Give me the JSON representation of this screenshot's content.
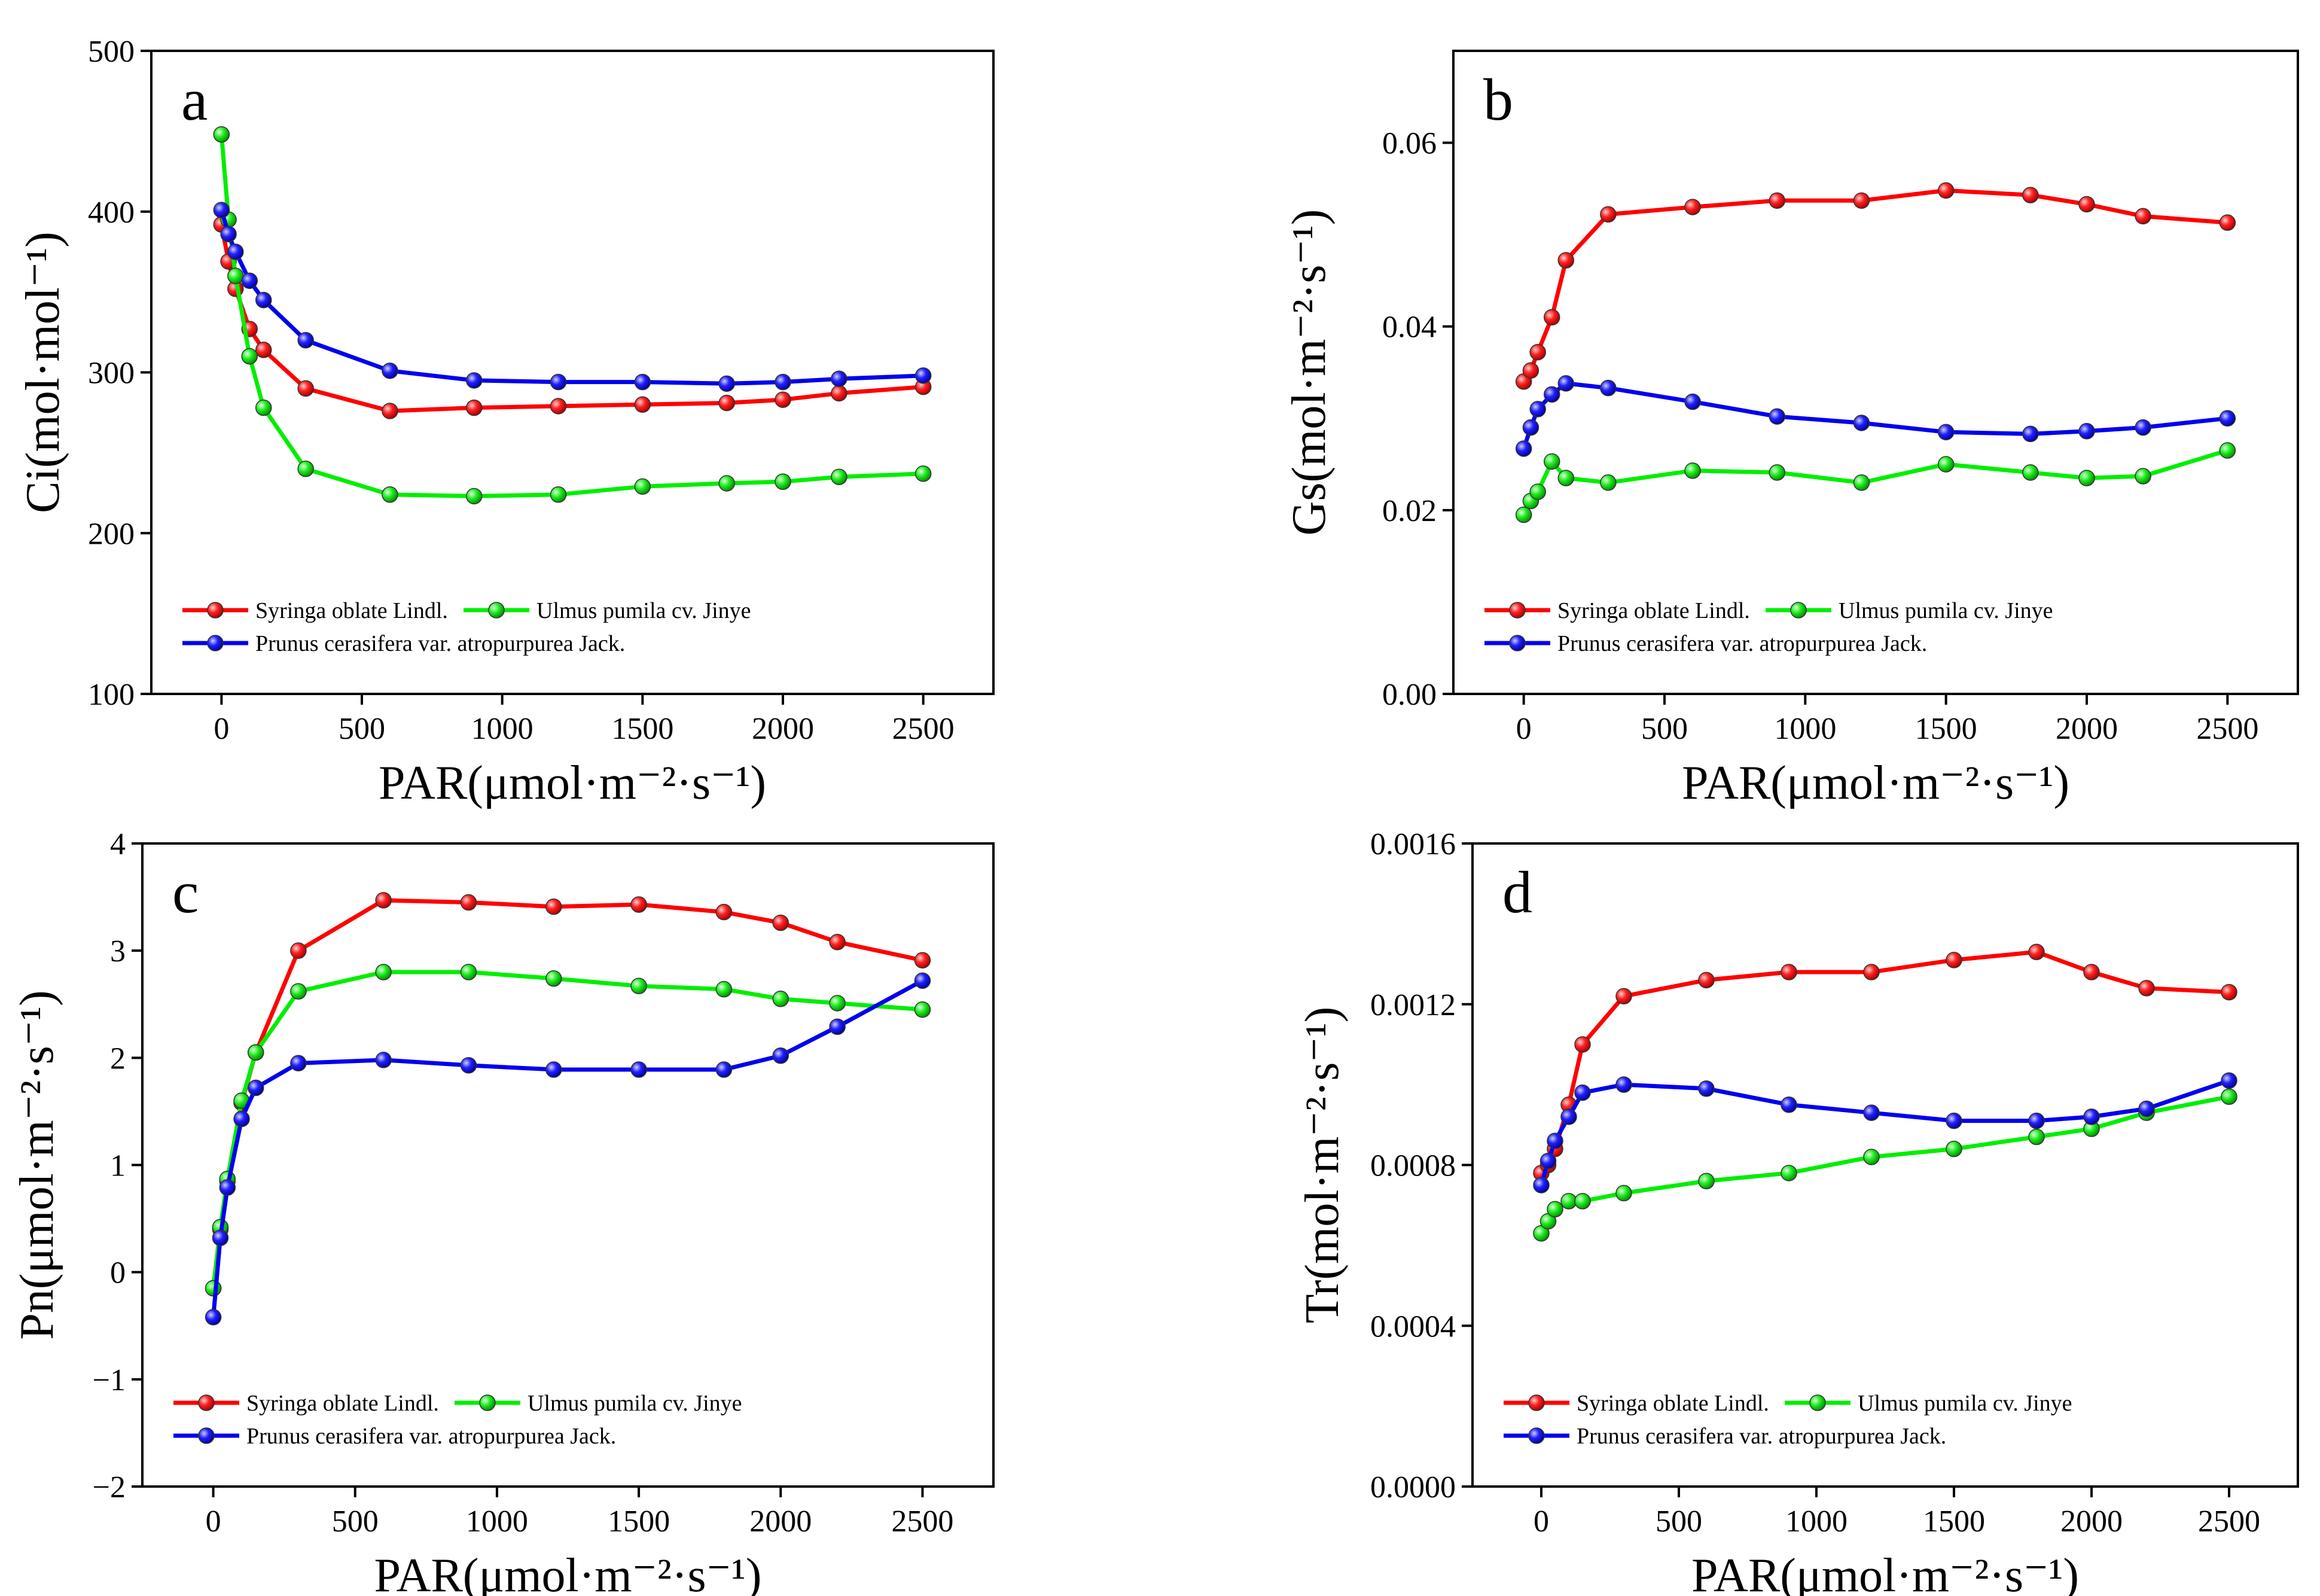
{
  "colors": {
    "red": "#ff0000",
    "green": "#00ee00",
    "blue": "#0000ee",
    "axis": "#000000"
  },
  "x_values": [
    0,
    25,
    50,
    100,
    150,
    300,
    600,
    900,
    1200,
    1500,
    1800,
    2000,
    2200,
    2500
  ],
  "legend": {
    "series1": "Syringa oblate Lindl.",
    "series2": "Ulmus pumila cv. Jinye",
    "series3": "Prunus cerasifera var. atropurpurea Jack."
  },
  "chart_data": [
    {
      "id": "a",
      "type": "line",
      "panel_label": "a",
      "xlabel": "PAR(μmol·m⁻²·s⁻¹)",
      "ylabel": "Ci(mol·mol⁻¹)",
      "xlim": [
        -250,
        2750
      ],
      "ylim": [
        100,
        500
      ],
      "xticks": [
        0,
        500,
        1000,
        1500,
        2000,
        2500
      ],
      "yticks": [
        100,
        200,
        300,
        400,
        500
      ],
      "ytick_labels": [
        "100",
        "200",
        "300",
        "400",
        "500"
      ],
      "series": [
        {
          "name": "Syringa oblate Lindl.",
          "color": "#ff0000",
          "values": [
            392,
            369,
            352,
            327,
            314,
            290,
            276,
            278,
            279,
            280,
            281,
            283,
            287,
            291
          ]
        },
        {
          "name": "Ulmus pumila cv. Jinye",
          "color": "#00ee00",
          "values": [
            448,
            395,
            360,
            310,
            278,
            240,
            224,
            223,
            224,
            229,
            231,
            232,
            235,
            237
          ]
        },
        {
          "name": "Prunus cerasifera var. atropurpurea Jack.",
          "color": "#0000ee",
          "values": [
            401,
            386,
            375,
            357,
            345,
            320,
            301,
            295,
            294,
            294,
            293,
            294,
            296,
            298
          ]
        }
      ]
    },
    {
      "id": "b",
      "type": "line",
      "panel_label": "b",
      "xlabel": "PAR(μmol·m⁻²·s⁻¹)",
      "ylabel": "Gs(mol·m⁻²·s⁻¹)",
      "xlim": [
        -250,
        2750
      ],
      "ylim": [
        0,
        0.07
      ],
      "xticks": [
        0,
        500,
        1000,
        1500,
        2000,
        2500
      ],
      "yticks": [
        0,
        0.02,
        0.04,
        0.06
      ],
      "ytick_labels": [
        "0.00",
        "0.02",
        "0.04",
        "0.06"
      ],
      "series": [
        {
          "name": "Syringa oblate Lindl.",
          "color": "#ff0000",
          "values": [
            0.034,
            0.0352,
            0.0372,
            0.041,
            0.0472,
            0.0522,
            0.053,
            0.0537,
            0.0537,
            0.0548,
            0.0543,
            0.0533,
            0.052,
            0.0513
          ]
        },
        {
          "name": "Ulmus pumila cv. Jinye",
          "color": "#00ee00",
          "values": [
            0.0195,
            0.021,
            0.022,
            0.0253,
            0.0235,
            0.023,
            0.0243,
            0.0241,
            0.023,
            0.025,
            0.0241,
            0.0235,
            0.0237,
            0.0265
          ]
        },
        {
          "name": "Prunus cerasifera var. atropurpurea Jack.",
          "color": "#0000ee",
          "values": [
            0.0267,
            0.029,
            0.031,
            0.0326,
            0.0338,
            0.0333,
            0.0318,
            0.0302,
            0.0295,
            0.0285,
            0.0283,
            0.0286,
            0.029,
            0.03
          ]
        }
      ]
    },
    {
      "id": "c",
      "type": "line",
      "panel_label": "c",
      "xlabel": "PAR(μmol·m⁻²·s⁻¹)",
      "ylabel": "Pn(μmol·m⁻²·s⁻¹)",
      "xlim": [
        -250,
        2750
      ],
      "ylim": [
        -2,
        4
      ],
      "xticks": [
        0,
        500,
        1000,
        1500,
        2000,
        2500
      ],
      "yticks": [
        -2,
        -1,
        0,
        1,
        2,
        3,
        4
      ],
      "ytick_labels": [
        "−2",
        "−1",
        "0",
        "1",
        "2",
        "3",
        "4"
      ],
      "series": [
        {
          "name": "Syringa oblate Lindl.",
          "color": "#ff0000",
          "values": [
            -0.15,
            0.4,
            0.85,
            1.58,
            2.05,
            3.0,
            3.47,
            3.45,
            3.41,
            3.43,
            3.36,
            3.26,
            3.08,
            2.91
          ]
        },
        {
          "name": "Ulmus pumila cv. Jinye",
          "color": "#00ee00",
          "values": [
            -0.15,
            0.42,
            0.87,
            1.6,
            2.05,
            2.62,
            2.8,
            2.8,
            2.74,
            2.67,
            2.64,
            2.55,
            2.51,
            2.45
          ]
        },
        {
          "name": "Prunus cerasifera var. atropurpurea Jack.",
          "color": "#0000ee",
          "values": [
            -0.42,
            0.32,
            0.79,
            1.43,
            1.72,
            1.95,
            1.98,
            1.93,
            1.89,
            1.89,
            1.89,
            2.02,
            2.29,
            2.72
          ]
        }
      ]
    },
    {
      "id": "d",
      "type": "line",
      "panel_label": "d",
      "xlabel": "PAR(μmol·m⁻²·s⁻¹)",
      "ylabel": "Tr(mol·m⁻²·s⁻¹)",
      "xlim": [
        -250,
        2750
      ],
      "ylim": [
        0,
        0.0016
      ],
      "xticks": [
        0,
        500,
        1000,
        1500,
        2000,
        2500
      ],
      "yticks": [
        0,
        0.0004,
        0.0008,
        0.0012,
        0.0016
      ],
      "ytick_labels": [
        "0.0000",
        "0.0004",
        "0.0008",
        "0.0012",
        "0.0016"
      ],
      "series": [
        {
          "name": "Syringa oblate Lindl.",
          "color": "#ff0000",
          "values": [
            0.00078,
            0.0008,
            0.00084,
            0.00095,
            0.0011,
            0.00122,
            0.00126,
            0.00128,
            0.00128,
            0.00131,
            0.00133,
            0.00128,
            0.00124,
            0.00123
          ]
        },
        {
          "name": "Ulmus pumila cv. Jinye",
          "color": "#00ee00",
          "values": [
            0.00063,
            0.00066,
            0.00069,
            0.00071,
            0.00071,
            0.00073,
            0.00076,
            0.00078,
            0.00082,
            0.00084,
            0.00087,
            0.00089,
            0.00093,
            0.00097
          ]
        },
        {
          "name": "Prunus cerasifera var. atropurpurea Jack.",
          "color": "#0000ee",
          "values": [
            0.00075,
            0.00081,
            0.00086,
            0.00092,
            0.00098,
            0.001,
            0.00099,
            0.00095,
            0.00093,
            0.00091,
            0.00091,
            0.00092,
            0.00094,
            0.00101
          ]
        }
      ]
    }
  ]
}
